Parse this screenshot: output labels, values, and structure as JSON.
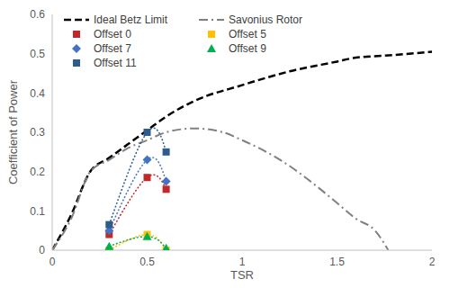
{
  "chart_data": {
    "type": "line",
    "xlabel": "TSR",
    "ylabel": "Coefficient of Power",
    "xlim": [
      0,
      2
    ],
    "xticks": [
      0,
      0.5,
      1,
      1.5,
      2
    ],
    "ylim": [
      0,
      0.6
    ],
    "yticks": [
      0,
      0.1,
      0.2,
      0.3,
      0.4,
      0.5,
      0.6
    ],
    "grid": false,
    "legend": "upper left",
    "series": [
      {
        "name": "Ideal Betz Limit",
        "color": "#000000",
        "line_style": "dashed",
        "x": [
          0,
          0.1,
          0.2,
          0.3,
          0.4,
          0.5,
          0.6,
          0.75,
          1.0,
          1.25,
          1.5,
          1.6,
          1.75,
          2.0
        ],
        "values": [
          0,
          0.09,
          0.2,
          0.235,
          0.27,
          0.305,
          0.34,
          0.38,
          0.42,
          0.455,
          0.48,
          0.49,
          0.495,
          0.505
        ]
      },
      {
        "name": "Savonius Rotor",
        "color": "#808080",
        "line_style": "dashdot",
        "x": [
          0,
          0.1,
          0.2,
          0.3,
          0.4,
          0.5,
          0.6,
          0.75,
          0.9,
          1.0,
          1.2,
          1.4,
          1.5,
          1.6,
          1.7,
          1.77
        ],
        "values": [
          0,
          0.08,
          0.2,
          0.23,
          0.26,
          0.28,
          0.3,
          0.31,
          0.3,
          0.28,
          0.23,
          0.16,
          0.12,
          0.08,
          0.05,
          0
        ]
      },
      {
        "name": "Offset 0",
        "color": "#c0282a",
        "marker": "square",
        "line_style": "dotted",
        "x": [
          0.3,
          0.5,
          0.6
        ],
        "values": [
          0.04,
          0.185,
          0.155
        ]
      },
      {
        "name": "Offset 5",
        "color": "#ffc000",
        "marker": "square",
        "line_style": "dotted",
        "x": [
          0.3,
          0.5,
          0.6
        ],
        "values": [
          0,
          0.04,
          0
        ]
      },
      {
        "name": "Offset 7",
        "color": "#4472c4",
        "marker": "diamond",
        "line_style": "dotted",
        "x": [
          0.3,
          0.5,
          0.6
        ],
        "values": [
          0.05,
          0.23,
          0.175
        ]
      },
      {
        "name": "Offset 9",
        "color": "#00b050",
        "marker": "triangle",
        "line_style": "dotted",
        "x": [
          0.3,
          0.5,
          0.6
        ],
        "values": [
          0.01,
          0.035,
          0.005
        ]
      },
      {
        "name": "Offset 11",
        "color": "#2e5c8a",
        "marker": "square",
        "line_style": "dotted",
        "x": [
          0.3,
          0.5,
          0.6
        ],
        "values": [
          0.065,
          0.3,
          0.25
        ]
      }
    ]
  }
}
